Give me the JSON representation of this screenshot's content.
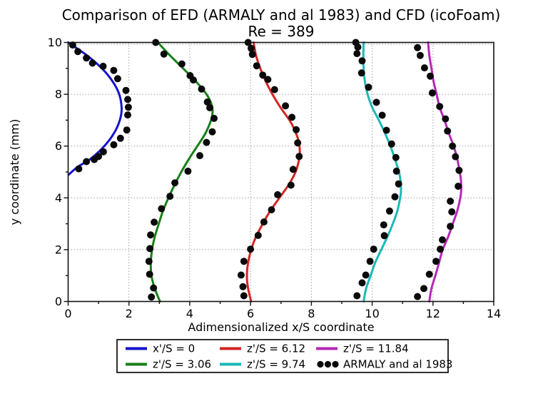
{
  "chart_data": {
    "type": "line",
    "title": "Comparison of EFD (ARMALY and al 1983) and CFD (icoFoam)",
    "subtitle": "Re = 389",
    "xlabel": "Adimensionalized x/S coordinate",
    "ylabel": "y coordinate (mm)",
    "xlim": [
      0,
      14
    ],
    "ylim": [
      0,
      10
    ],
    "x_ticks": [
      0,
      2,
      4,
      6,
      8,
      10,
      12,
      14
    ],
    "y_ticks": [
      0,
      2,
      4,
      6,
      8,
      10
    ],
    "x_minor_ticks": [
      1,
      3,
      5,
      7,
      9,
      11,
      13
    ],
    "y_minor_ticks": [
      1,
      3,
      5,
      7,
      9
    ],
    "grid": "dotted",
    "grid_color": "#a0a0a0",
    "dot_color": "#0a0a0a",
    "series": [
      {
        "name": "x'/S = 0",
        "color": "#1414cc",
        "cfd_curve": [
          [
            0.02,
            4.9
          ],
          [
            0.32,
            5.2
          ],
          [
            0.73,
            5.5
          ],
          [
            1.19,
            6.0
          ],
          [
            1.51,
            6.5
          ],
          [
            1.7,
            7.0
          ],
          [
            1.76,
            7.45
          ],
          [
            1.68,
            8.0
          ],
          [
            1.46,
            8.5
          ],
          [
            1.11,
            9.0
          ],
          [
            0.62,
            9.5
          ],
          [
            0.0,
            10.0
          ]
        ],
        "efd_points": [
          [
            0.15,
            9.9
          ],
          [
            0.32,
            9.65
          ],
          [
            0.6,
            9.4
          ],
          [
            0.8,
            9.2
          ],
          [
            1.15,
            9.08
          ],
          [
            1.5,
            8.92
          ],
          [
            1.63,
            8.6
          ],
          [
            1.9,
            8.15
          ],
          [
            1.96,
            7.8
          ],
          [
            1.98,
            7.5
          ],
          [
            1.96,
            7.2
          ],
          [
            1.93,
            6.62
          ],
          [
            1.72,
            6.3
          ],
          [
            1.5,
            6.05
          ],
          [
            1.16,
            5.78
          ],
          [
            1.0,
            5.6
          ],
          [
            0.86,
            5.48
          ],
          [
            0.6,
            5.4
          ],
          [
            0.35,
            5.12
          ]
        ]
      },
      {
        "name": "z'/S = 3.06",
        "color": "#178017",
        "cfd_curve": [
          [
            3.02,
            0
          ],
          [
            2.85,
            0.5
          ],
          [
            2.74,
            1
          ],
          [
            2.72,
            1.5
          ],
          [
            2.76,
            2
          ],
          [
            2.85,
            2.5
          ],
          [
            2.98,
            3
          ],
          [
            3.12,
            3.5
          ],
          [
            3.3,
            4
          ],
          [
            3.5,
            4.5
          ],
          [
            3.72,
            5
          ],
          [
            3.97,
            5.5
          ],
          [
            4.25,
            6
          ],
          [
            4.52,
            6.5
          ],
          [
            4.7,
            7
          ],
          [
            4.75,
            7.3
          ],
          [
            4.72,
            7.6
          ],
          [
            4.55,
            8
          ],
          [
            4.2,
            8.5
          ],
          [
            3.78,
            9
          ],
          [
            3.35,
            9.5
          ],
          [
            2.95,
            10
          ]
        ],
        "efd_points": [
          [
            2.88,
            10.0
          ],
          [
            3.15,
            9.55
          ],
          [
            3.74,
            9.17
          ],
          [
            4.01,
            8.72
          ],
          [
            4.12,
            8.55
          ],
          [
            4.39,
            8.2
          ],
          [
            4.58,
            7.7
          ],
          [
            4.66,
            7.48
          ],
          [
            4.8,
            7.07
          ],
          [
            4.74,
            6.55
          ],
          [
            4.55,
            6.14
          ],
          [
            4.33,
            5.63
          ],
          [
            3.94,
            5.03
          ],
          [
            3.51,
            4.58
          ],
          [
            3.35,
            4.06
          ],
          [
            3.07,
            3.58
          ],
          [
            2.83,
            3.06
          ],
          [
            2.71,
            2.57
          ],
          [
            2.69,
            2.04
          ],
          [
            2.66,
            1.55
          ],
          [
            2.68,
            1.05
          ],
          [
            2.81,
            0.52
          ],
          [
            2.74,
            0.17
          ]
        ]
      },
      {
        "name": "z'/S = 6.12",
        "color": "#d42424",
        "cfd_curve": [
          [
            6.02,
            0
          ],
          [
            5.92,
            0.5
          ],
          [
            5.88,
            1
          ],
          [
            5.92,
            1.5
          ],
          [
            6.02,
            2
          ],
          [
            6.18,
            2.5
          ],
          [
            6.4,
            3
          ],
          [
            6.65,
            3.5
          ],
          [
            6.95,
            4
          ],
          [
            7.25,
            4.5
          ],
          [
            7.48,
            5
          ],
          [
            7.6,
            5.5
          ],
          [
            7.62,
            5.8
          ],
          [
            7.58,
            6.2
          ],
          [
            7.42,
            6.7
          ],
          [
            7.28,
            7
          ],
          [
            6.98,
            7.5
          ],
          [
            6.72,
            8
          ],
          [
            6.5,
            8.5
          ],
          [
            6.32,
            9
          ],
          [
            6.18,
            9.5
          ],
          [
            6.1,
            10
          ]
        ],
        "efd_points": [
          [
            5.92,
            10.0
          ],
          [
            6.02,
            9.77
          ],
          [
            6.06,
            9.54
          ],
          [
            6.2,
            9.1
          ],
          [
            6.4,
            8.74
          ],
          [
            6.57,
            8.57
          ],
          [
            6.79,
            8.18
          ],
          [
            7.15,
            7.55
          ],
          [
            7.36,
            7.11
          ],
          [
            7.5,
            6.63
          ],
          [
            7.55,
            6.12
          ],
          [
            7.6,
            5.6
          ],
          [
            7.4,
            5.1
          ],
          [
            7.33,
            4.49
          ],
          [
            6.89,
            4.12
          ],
          [
            6.69,
            3.54
          ],
          [
            6.44,
            3.07
          ],
          [
            6.25,
            2.55
          ],
          [
            6.0,
            2.02
          ],
          [
            5.78,
            1.55
          ],
          [
            5.69,
            1.02
          ],
          [
            5.75,
            0.57
          ],
          [
            5.78,
            0.22
          ]
        ]
      },
      {
        "name": "z'/S = 9.74",
        "color": "#1cb8b8",
        "cfd_curve": [
          [
            9.72,
            0
          ],
          [
            9.8,
            0.5
          ],
          [
            9.95,
            1
          ],
          [
            10.1,
            1.5
          ],
          [
            10.3,
            2
          ],
          [
            10.5,
            2.5
          ],
          [
            10.68,
            3
          ],
          [
            10.83,
            3.5
          ],
          [
            10.92,
            4
          ],
          [
            10.95,
            4.3
          ],
          [
            10.93,
            4.7
          ],
          [
            10.88,
            5
          ],
          [
            10.75,
            5.5
          ],
          [
            10.6,
            6
          ],
          [
            10.42,
            6.5
          ],
          [
            10.22,
            7
          ],
          [
            10.0,
            7.5
          ],
          [
            9.85,
            8
          ],
          [
            9.76,
            8.5
          ],
          [
            9.72,
            9
          ],
          [
            9.71,
            9.5
          ],
          [
            9.72,
            10
          ]
        ],
        "efd_points": [
          [
            9.46,
            10.0
          ],
          [
            9.53,
            9.82
          ],
          [
            9.5,
            9.57
          ],
          [
            9.67,
            9.29
          ],
          [
            9.65,
            8.82
          ],
          [
            9.88,
            8.27
          ],
          [
            10.14,
            7.69
          ],
          [
            10.33,
            7.19
          ],
          [
            10.47,
            6.61
          ],
          [
            10.64,
            6.08
          ],
          [
            10.78,
            5.56
          ],
          [
            10.8,
            5.03
          ],
          [
            10.87,
            4.54
          ],
          [
            10.75,
            4.04
          ],
          [
            10.57,
            3.49
          ],
          [
            10.38,
            2.96
          ],
          [
            10.4,
            2.54
          ],
          [
            10.05,
            2.02
          ],
          [
            9.93,
            1.55
          ],
          [
            9.79,
            1.02
          ],
          [
            9.67,
            0.72
          ],
          [
            9.5,
            0.22
          ]
        ]
      },
      {
        "name": "z'/S = 11.84",
        "color": "#b428b4",
        "cfd_curve": [
          [
            11.88,
            0
          ],
          [
            11.95,
            0.5
          ],
          [
            12.08,
            1
          ],
          [
            12.2,
            1.5
          ],
          [
            12.32,
            2
          ],
          [
            12.5,
            2.5
          ],
          [
            12.65,
            3
          ],
          [
            12.8,
            3.5
          ],
          [
            12.9,
            4
          ],
          [
            12.93,
            4.3
          ],
          [
            12.92,
            4.7
          ],
          [
            12.88,
            5
          ],
          [
            12.8,
            5.5
          ],
          [
            12.68,
            6
          ],
          [
            12.52,
            6.5
          ],
          [
            12.38,
            7
          ],
          [
            12.22,
            7.5
          ],
          [
            12.12,
            8
          ],
          [
            12.02,
            8.5
          ],
          [
            11.95,
            9
          ],
          [
            11.88,
            9.5
          ],
          [
            11.84,
            10
          ]
        ],
        "efd_points": [
          [
            11.49,
            9.8
          ],
          [
            11.58,
            9.5
          ],
          [
            11.72,
            9.02
          ],
          [
            11.91,
            8.7
          ],
          [
            11.98,
            8.05
          ],
          [
            12.22,
            7.53
          ],
          [
            12.41,
            7.05
          ],
          [
            12.48,
            6.58
          ],
          [
            12.64,
            6.0
          ],
          [
            12.74,
            5.59
          ],
          [
            12.86,
            5.06
          ],
          [
            12.83,
            4.45
          ],
          [
            12.57,
            3.87
          ],
          [
            12.62,
            3.46
          ],
          [
            12.57,
            2.9
          ],
          [
            12.31,
            2.38
          ],
          [
            12.24,
            2.02
          ],
          [
            12.1,
            1.55
          ],
          [
            11.88,
            1.05
          ],
          [
            11.7,
            0.5
          ],
          [
            11.49,
            0.19
          ]
        ]
      }
    ],
    "legend": {
      "position": "below-axis",
      "columns": 3,
      "items": [
        {
          "label": "x'/S = 0",
          "color": "#1414cc",
          "marker": "line"
        },
        {
          "label": "z'/S = 3.06",
          "color": "#178017",
          "marker": "line"
        },
        {
          "label": "z'/S = 6.12",
          "color": "#d42424",
          "marker": "line"
        },
        {
          "label": "z'/S = 9.74",
          "color": "#1cb8b8",
          "marker": "line"
        },
        {
          "label": "z'/S = 11.84",
          "color": "#b428b4",
          "marker": "line"
        },
        {
          "label": "ARMALY and al 1983",
          "color": "#0a0a0a",
          "marker": "dots"
        }
      ]
    }
  }
}
